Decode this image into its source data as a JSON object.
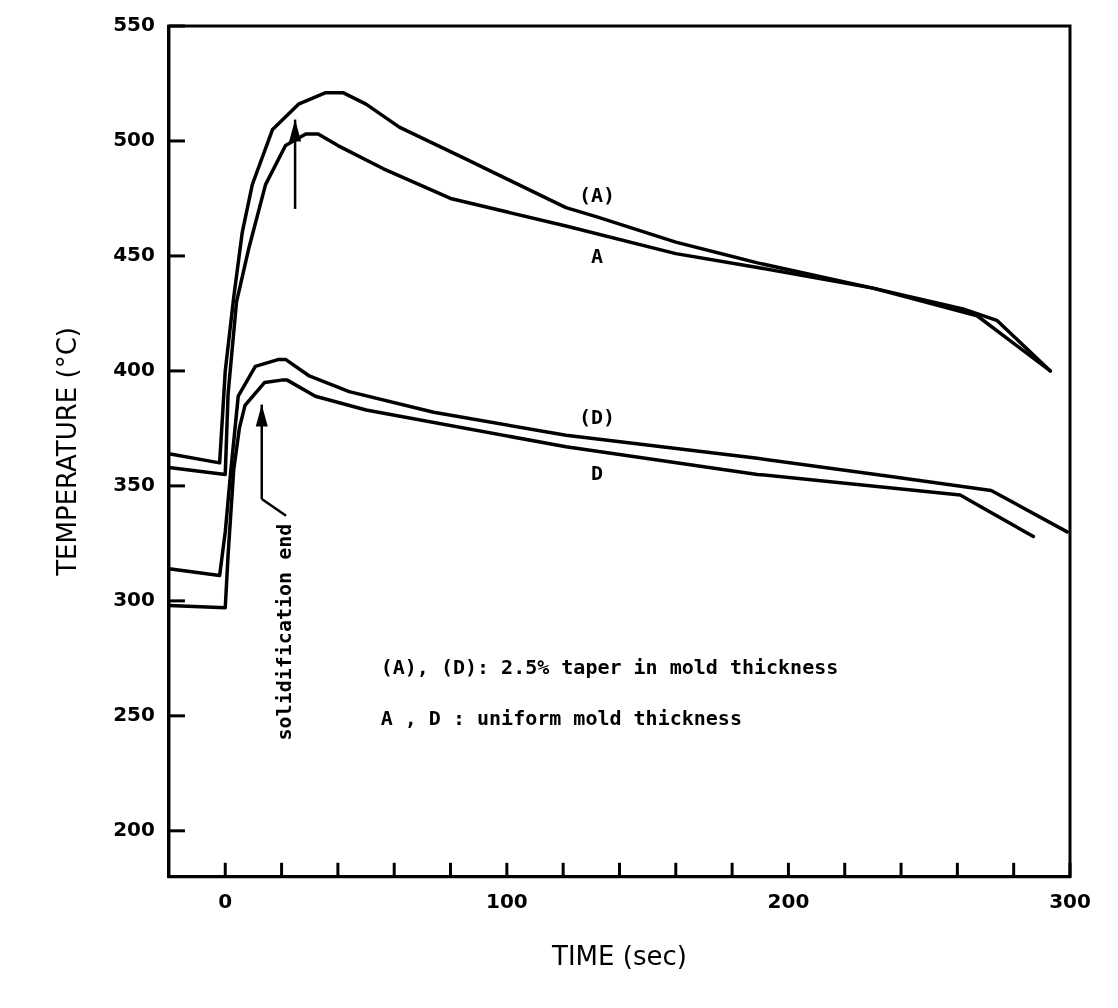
{
  "chart_data": {
    "type": "line",
    "xlabel": "TIME (sec)",
    "ylabel": "TEMPERATURE (°C)",
    "xlim": [
      -20,
      300
    ],
    "ylim": [
      180,
      550
    ],
    "xticks": [
      0,
      {
        "value": 20,
        "label": null
      },
      {
        "value": 40,
        "label": null
      },
      {
        "value": 60,
        "label": null
      },
      {
        "value": 80,
        "label": null
      },
      100,
      {
        "value": 120,
        "label": null
      },
      {
        "value": 140,
        "label": null
      },
      {
        "value": 160,
        "label": null
      },
      {
        "value": 180,
        "label": null
      },
      200,
      {
        "value": 220,
        "label": null
      },
      {
        "value": 240,
        "label": null
      },
      {
        "value": 260,
        "label": null
      },
      {
        "value": 280,
        "label": null
      },
      300
    ],
    "yticks": [
      200,
      250,
      300,
      350,
      400,
      450,
      500,
      550
    ],
    "grid": false,
    "legend": false,
    "marker": "none",
    "line_style": "solid",
    "annotations": [
      "solidification end",
      "(A), (D): 2.5% taper in mold thickness",
      "A , D : uniform mold thickness"
    ],
    "series": [
      {
        "name": "(A)",
        "color": "#000000",
        "x": [
          -20,
          -2,
          0,
          3,
          6,
          9.6,
          16.8,
          26,
          35.7,
          41.8,
          50,
          61.8,
          85.7,
          121,
          132,
          160,
          189,
          230,
          262,
          274,
          293
        ],
        "values": [
          364,
          360,
          400,
          432,
          460,
          481,
          505,
          516,
          521,
          521,
          516,
          506,
          492,
          471,
          467,
          456,
          447,
          436,
          427,
          422,
          400
        ]
      },
      {
        "name": "A",
        "color": "#000000",
        "x": [
          -20,
          0,
          1,
          4,
          8.3,
          14.3,
          21.4,
          28.6,
          33,
          40,
          56,
          80,
          121,
          160,
          189,
          230,
          267,
          293
        ],
        "values": [
          358,
          355,
          390,
          430,
          453,
          481,
          498,
          503,
          503,
          498,
          488,
          475,
          463,
          451,
          445,
          436,
          424,
          400
        ]
      },
      {
        "name": "(D)",
        "color": "#000000",
        "x": [
          -20,
          -2,
          0,
          2,
          4.6,
          10.7,
          19,
          21.4,
          29.6,
          44,
          74,
          121,
          189,
          237,
          272,
          299
        ],
        "values": [
          314,
          311,
          330,
          357,
          389,
          402,
          405,
          405,
          398,
          391,
          382,
          372,
          362,
          354,
          348,
          330
        ]
      },
      {
        "name": "D",
        "color": "#000000",
        "x": [
          -20,
          0,
          1,
          3,
          5,
          7,
          14,
          20,
          22,
          32,
          50,
          121,
          189,
          261,
          287
        ],
        "values": [
          298,
          297,
          320,
          357,
          375,
          385,
          395,
          396,
          396,
          389,
          383,
          367,
          355,
          346,
          328
        ]
      }
    ]
  }
}
